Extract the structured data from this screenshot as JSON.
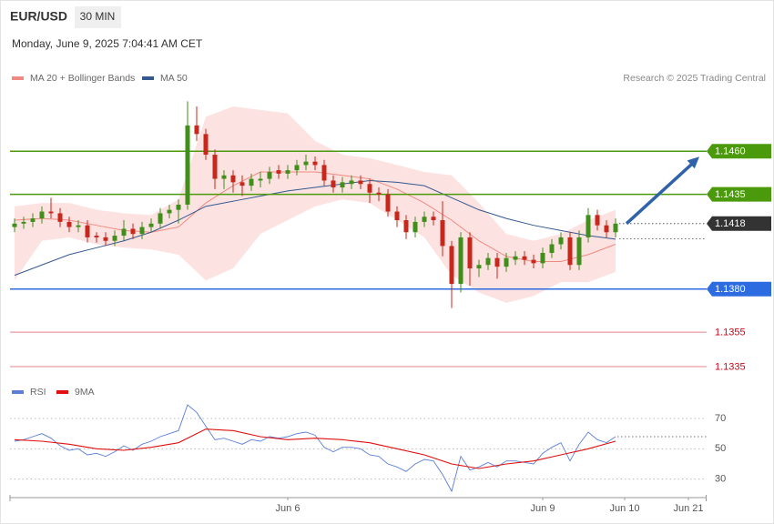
{
  "header": {
    "symbol": "EUR/USD",
    "timeframe": "30 MIN",
    "datetime": "Monday, June 9, 2025 7:04:41 AM CET",
    "credit": "Research © 2025 Trading Central"
  },
  "chart_data": [
    {
      "type": "candlestick",
      "xlim": [
        -0.5,
        76
      ],
      "ylim": [
        1.1326,
        1.1495
      ],
      "up_color": "#3f8f1a",
      "down_color": "#c8281c",
      "open": [
        1.1416,
        1.1418,
        1.1419,
        1.1421,
        1.1425,
        1.1424,
        1.1419,
        1.1416,
        1.1417,
        1.1411,
        1.141,
        1.1408,
        1.1411,
        1.1415,
        1.1412,
        1.1416,
        1.1418,
        1.1424,
        1.1426,
        1.1429,
        1.1475,
        1.147,
        1.1458,
        1.1444,
        1.1446,
        1.1442,
        1.144,
        1.1443,
        1.1444,
        1.1449,
        1.1447,
        1.1449,
        1.1452,
        1.1454,
        1.1452,
        1.1443,
        1.1439,
        1.1441,
        1.1443,
        1.1441,
        1.1436,
        1.1435,
        1.1425,
        1.142,
        1.1413,
        1.1419,
        1.1422,
        1.142,
        1.1405,
        1.1383,
        1.141,
        1.1392,
        1.1394,
        1.1398,
        1.1393,
        1.1397,
        1.1399,
        1.1397,
        1.1395,
        1.1401,
        1.1406,
        1.141,
        1.1394,
        1.141,
        1.1423,
        1.1417,
        1.1413
      ],
      "high": [
        1.1421,
        1.1422,
        1.1424,
        1.1428,
        1.1433,
        1.1427,
        1.1422,
        1.142,
        1.142,
        1.1413,
        1.1413,
        1.1414,
        1.142,
        1.1418,
        1.1419,
        1.1421,
        1.1427,
        1.1429,
        1.1432,
        1.1489,
        1.1486,
        1.1473,
        1.1461,
        1.1449,
        1.1449,
        1.1446,
        1.1447,
        1.1448,
        1.1451,
        1.1452,
        1.1452,
        1.1455,
        1.1458,
        1.1457,
        1.1455,
        1.1446,
        1.1445,
        1.1446,
        1.1446,
        1.1444,
        1.1439,
        1.1438,
        1.1428,
        1.1423,
        1.1422,
        1.1425,
        1.1425,
        1.1431,
        1.1408,
        1.1413,
        1.1413,
        1.1397,
        1.1401,
        1.1401,
        1.1401,
        1.1402,
        1.1402,
        1.14,
        1.1404,
        1.1409,
        1.1413,
        1.1413,
        1.1414,
        1.1427,
        1.1426,
        1.142,
        1.1421
      ],
      "low": [
        1.1413,
        1.1415,
        1.1416,
        1.1418,
        1.1421,
        1.1416,
        1.1413,
        1.1413,
        1.1407,
        1.1407,
        1.1405,
        1.1405,
        1.1408,
        1.1409,
        1.1409,
        1.1413,
        1.1415,
        1.1421,
        1.1418,
        1.1426,
        1.1466,
        1.1455,
        1.1438,
        1.1438,
        1.1436,
        1.1434,
        1.1437,
        1.1439,
        1.1441,
        1.1444,
        1.1444,
        1.1446,
        1.1449,
        1.1449,
        1.144,
        1.1436,
        1.1436,
        1.1438,
        1.1438,
        1.143,
        1.1431,
        1.1422,
        1.1416,
        1.1409,
        1.141,
        1.1416,
        1.1417,
        1.1399,
        1.1369,
        1.1378,
        1.1382,
        1.1387,
        1.1391,
        1.1386,
        1.139,
        1.1394,
        1.1394,
        1.1392,
        1.1392,
        1.1398,
        1.1403,
        1.1391,
        1.1391,
        1.1407,
        1.1414,
        1.141,
        1.141
      ],
      "close": [
        1.1418,
        1.1419,
        1.1421,
        1.1425,
        1.1424,
        1.1419,
        1.1416,
        1.1417,
        1.141,
        1.141,
        1.1408,
        1.1411,
        1.1415,
        1.1412,
        1.1416,
        1.1418,
        1.1424,
        1.1426,
        1.1429,
        1.1475,
        1.147,
        1.1458,
        1.1444,
        1.1446,
        1.1442,
        1.144,
        1.1444,
        1.1444,
        1.1448,
        1.1447,
        1.1449,
        1.1452,
        1.1454,
        1.1452,
        1.1443,
        1.1439,
        1.1442,
        1.1443,
        1.1441,
        1.1436,
        1.1435,
        1.1425,
        1.142,
        1.1413,
        1.1419,
        1.1422,
        1.142,
        1.1405,
        1.1383,
        1.141,
        1.1392,
        1.1394,
        1.1398,
        1.1393,
        1.1398,
        1.1399,
        1.1397,
        1.1395,
        1.1401,
        1.1406,
        1.141,
        1.1394,
        1.141,
        1.1423,
        1.1417,
        1.1413,
        1.1418
      ],
      "indicator_x": [
        0,
        3,
        6,
        9,
        12,
        15,
        18,
        21,
        24,
        27,
        30,
        33,
        36,
        39,
        42,
        45,
        48,
        51,
        54,
        57,
        60,
        63,
        66
      ],
      "series": [
        {
          "name": "MA 20 + Bollinger Bands",
          "color": "#f08a80",
          "band_color": "#fde2e2",
          "values": [
            1.142,
            1.1421,
            1.142,
            1.1417,
            1.1414,
            1.1413,
            1.1416,
            1.143,
            1.144,
            1.1448,
            1.1448,
            1.1448,
            1.1446,
            1.1444,
            1.1438,
            1.143,
            1.142,
            1.1408,
            1.1399,
            1.1396,
            1.1396,
            1.14,
            1.1406
          ],
          "upper": [
            1.1428,
            1.143,
            1.143,
            1.1426,
            1.1424,
            1.1423,
            1.1432,
            1.148,
            1.1486,
            1.1484,
            1.1482,
            1.1466,
            1.1458,
            1.1456,
            1.1452,
            1.1448,
            1.1446,
            1.143,
            1.1412,
            1.1408,
            1.1412,
            1.142,
            1.1426
          ],
          "lower": [
            1.1385,
            1.1408,
            1.141,
            1.1406,
            1.1404,
            1.1403,
            1.14,
            1.1385,
            1.1392,
            1.1412,
            1.142,
            1.1428,
            1.1432,
            1.143,
            1.142,
            1.141,
            1.1388,
            1.1378,
            1.1372,
            1.1376,
            1.1384,
            1.1384,
            1.139
          ]
        },
        {
          "name": "MA 50",
          "color": "#35598f",
          "values": [
            1.1388,
            1.1394,
            1.14,
            1.1404,
            1.1408,
            1.1413,
            1.142,
            1.1428,
            1.1431,
            1.1434,
            1.1437,
            1.1439,
            1.1441,
            1.1443,
            1.1442,
            1.144,
            1.1433,
            1.1426,
            1.1421,
            1.1417,
            1.1414,
            1.1411,
            1.1409
          ]
        }
      ],
      "levels": [
        {
          "value": 1.146,
          "label": "1.1460",
          "color": "#4a9a0c",
          "label_box": true
        },
        {
          "value": 1.1435,
          "label": "1.1435",
          "color": "#4a9a0c",
          "label_box": true
        },
        {
          "value": 1.138,
          "label": "1.1380",
          "color": "#2c6be0",
          "label_box": true
        },
        {
          "value": 1.1355,
          "label": "1.1355",
          "color": "#d0021b",
          "label_box": false
        },
        {
          "value": 1.1335,
          "label": "1.1335",
          "color": "#d0021b",
          "label_box": false
        }
      ],
      "current": {
        "value": 1.1418,
        "label": "1.1418",
        "color": "#333333"
      }
    },
    {
      "type": "line",
      "xlim": [
        -0.5,
        76
      ],
      "ylim": [
        22,
        82
      ],
      "yticks": [
        70,
        50,
        30
      ],
      "xticks": [
        {
          "value": 30,
          "label": "Jun 6"
        },
        {
          "value": 58,
          "label": "Jun 9"
        },
        {
          "value": 67,
          "label": "Jun 10"
        },
        {
          "value": 74,
          "label": "Jun 21"
        }
      ],
      "series": [
        {
          "name": "RSI",
          "color": "#5b7fd6",
          "values": [
            55,
            56,
            58,
            60,
            57,
            52,
            49,
            50,
            46,
            47,
            45,
            48,
            52,
            49,
            53,
            55,
            58,
            60,
            62,
            79,
            74,
            65,
            56,
            57,
            55,
            53,
            56,
            55,
            58,
            57,
            58,
            60,
            61,
            59,
            51,
            48,
            51,
            51,
            50,
            46,
            45,
            40,
            38,
            35,
            40,
            43,
            42,
            33,
            22,
            45,
            36,
            38,
            41,
            38,
            42,
            42,
            41,
            40,
            47,
            51,
            54,
            42,
            53,
            61,
            56,
            54,
            58
          ]
        },
        {
          "name": "9MA",
          "color": "#e01010",
          "x": [
            0,
            3,
            6,
            9,
            12,
            15,
            18,
            21,
            24,
            27,
            30,
            33,
            36,
            39,
            42,
            45,
            48,
            51,
            54,
            57,
            60,
            63,
            66
          ],
          "values": [
            56,
            55,
            53,
            50,
            49,
            51,
            54,
            63,
            62,
            58,
            56,
            57,
            56,
            54,
            50,
            46,
            40,
            37,
            40,
            42,
            46,
            50,
            55
          ]
        }
      ]
    }
  ]
}
